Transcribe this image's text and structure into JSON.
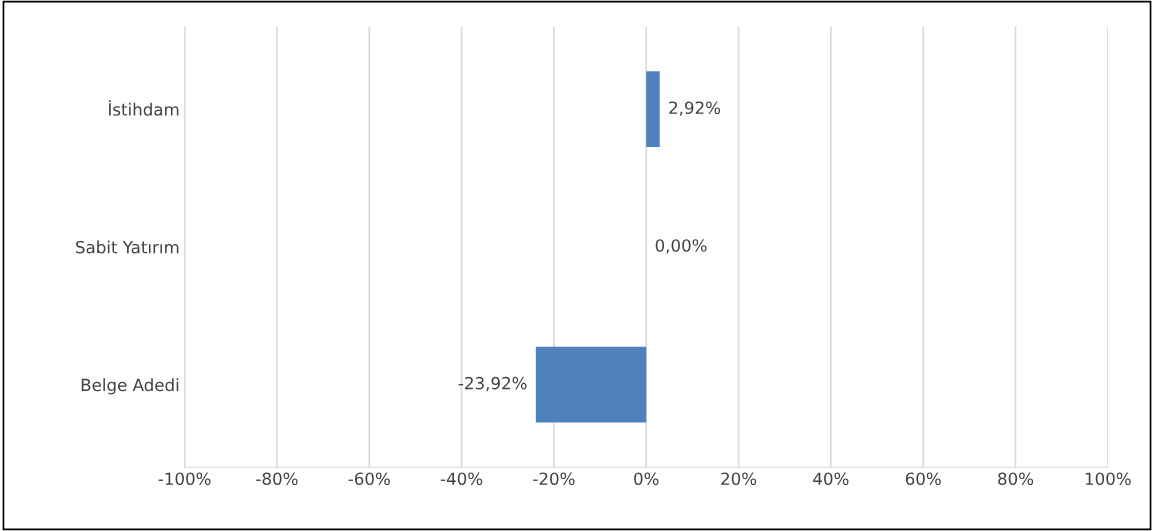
{
  "chart_data": {
    "type": "bar",
    "orientation": "horizontal",
    "categories": [
      "İstihdam",
      "Sabit Yatırım",
      "Belge Adedi"
    ],
    "values": [
      2.92,
      0.0,
      -23.92
    ],
    "value_labels": [
      "2,92%",
      "0,00%",
      "-23,92%"
    ],
    "color": "#4f81bd",
    "xlim": [
      -100,
      100
    ],
    "xticks": [
      {
        "value": -100,
        "label": "-100%"
      },
      {
        "value": -80,
        "label": "-80%"
      },
      {
        "value": -60,
        "label": "-60%"
      },
      {
        "value": -40,
        "label": "-40%"
      },
      {
        "value": -20,
        "label": "-20%"
      },
      {
        "value": 0,
        "label": "0%"
      },
      {
        "value": 20,
        "label": "20%"
      },
      {
        "value": 40,
        "label": "40%"
      },
      {
        "value": 60,
        "label": "60%"
      },
      {
        "value": 80,
        "label": "80%"
      },
      {
        "value": 100,
        "label": "100%"
      }
    ],
    "grid": "x",
    "legend": false
  }
}
